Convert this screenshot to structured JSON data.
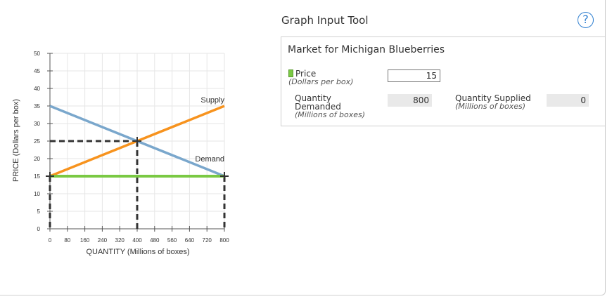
{
  "panel": {
    "title": "Graph Input Tool",
    "help_label": "?",
    "tool_title": "Market for Michigan Blueberries",
    "price_label": "Price",
    "price_unit": "(Dollars per box)",
    "price_value": "15",
    "qd_label_1": "Quantity",
    "qd_label_2": "Demanded",
    "qd_unit": "(Millions of boxes)",
    "qd_value": "800",
    "qs_label": "Quantity Supplied",
    "qs_unit": "(Millions of boxes)",
    "qs_value": "0"
  },
  "chart_data": {
    "type": "line",
    "xlabel": "QUANTITY (Millions of boxes)",
    "ylabel": "PRICE (Dollars per box)",
    "xlim": [
      0,
      800
    ],
    "ylim": [
      0,
      50
    ],
    "xticks": [
      0,
      80,
      160,
      240,
      320,
      400,
      480,
      560,
      640,
      720,
      800
    ],
    "yticks": [
      0,
      5,
      10,
      15,
      20,
      25,
      30,
      35,
      40,
      45,
      50
    ],
    "grid": true,
    "series": [
      {
        "name": "Supply",
        "color": "#f7931e",
        "points": [
          [
            0,
            15
          ],
          [
            800,
            35
          ]
        ]
      },
      {
        "name": "Demand",
        "color": "#7aa7cc",
        "points": [
          [
            0,
            35
          ],
          [
            800,
            15
          ]
        ]
      }
    ],
    "price_line": {
      "y": 15,
      "color": "#7ac943",
      "x_range": [
        0,
        800
      ]
    },
    "equilibrium": {
      "x": 400,
      "y": 25
    },
    "markers": [
      [
        0,
        15
      ],
      [
        400,
        25
      ],
      [
        800,
        15
      ]
    ]
  }
}
